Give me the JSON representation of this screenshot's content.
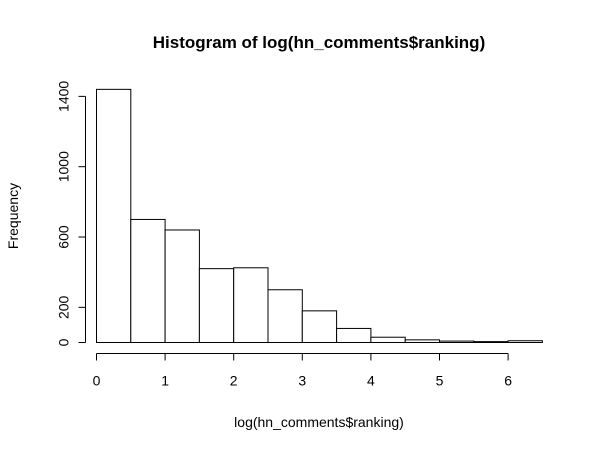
{
  "chart_data": {
    "type": "bar",
    "title": "Histogram of log(hn_comments$ranking)",
    "xlabel": "log(hn_comments$ranking)",
    "ylabel": "Frequency",
    "xlim": [
      0,
      6.5
    ],
    "ylim": [
      0,
      1440
    ],
    "grid": false,
    "bin_width": 0.5,
    "bins": [
      {
        "start": 0.0,
        "end": 0.5,
        "count": 1440
      },
      {
        "start": 0.5,
        "end": 1.0,
        "count": 700
      },
      {
        "start": 1.0,
        "end": 1.5,
        "count": 640
      },
      {
        "start": 1.5,
        "end": 2.0,
        "count": 420
      },
      {
        "start": 2.0,
        "end": 2.5,
        "count": 425
      },
      {
        "start": 2.5,
        "end": 3.0,
        "count": 300
      },
      {
        "start": 3.0,
        "end": 3.5,
        "count": 180
      },
      {
        "start": 3.5,
        "end": 4.0,
        "count": 80
      },
      {
        "start": 4.0,
        "end": 4.5,
        "count": 30
      },
      {
        "start": 4.5,
        "end": 5.0,
        "count": 15
      },
      {
        "start": 5.0,
        "end": 5.5,
        "count": 8
      },
      {
        "start": 5.5,
        "end": 6.0,
        "count": 5
      },
      {
        "start": 6.0,
        "end": 6.5,
        "count": 10
      }
    ],
    "x_ticks": [
      0,
      1,
      2,
      3,
      4,
      5,
      6
    ],
    "x_tick_labels": [
      "0",
      "1",
      "2",
      "3",
      "4",
      "5",
      "6"
    ],
    "y_ticks": [
      0,
      200,
      600,
      1000,
      1400
    ],
    "y_tick_labels": [
      "0",
      "200",
      "600",
      "1000",
      "1400"
    ]
  }
}
